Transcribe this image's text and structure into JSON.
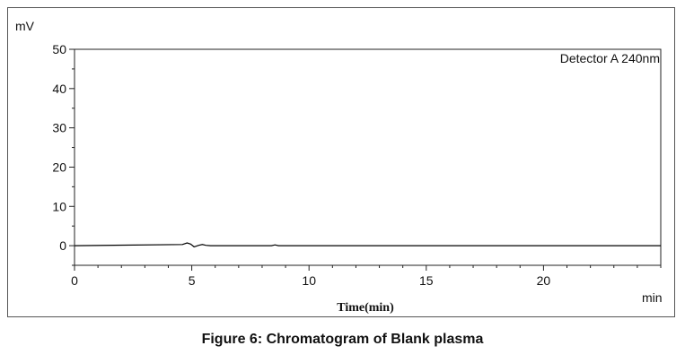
{
  "caption": "Figure 6: Chromatogram of Blank plasma",
  "chart_data": {
    "type": "line",
    "ylabel": "mV",
    "xlabel": "Time(min)",
    "x_unit_label": "min",
    "legend": "Detector A 240nm",
    "xlim": [
      0,
      25
    ],
    "ylim": [
      -5,
      50
    ],
    "x_ticks": [
      0,
      5,
      10,
      15,
      20
    ],
    "y_ticks": [
      0,
      10,
      20,
      30,
      40,
      50
    ],
    "grid": false,
    "series": [
      {
        "color": "#000000",
        "x": [
          0,
          4.6,
          4.8,
          4.95,
          5.1,
          5.3,
          5.45,
          5.6,
          5.8,
          8.4,
          8.55,
          8.7,
          25
        ],
        "y": [
          0,
          0.3,
          0.7,
          0.4,
          -0.3,
          0.1,
          0.3,
          0.1,
          0,
          0,
          0.2,
          0,
          0
        ]
      }
    ]
  }
}
